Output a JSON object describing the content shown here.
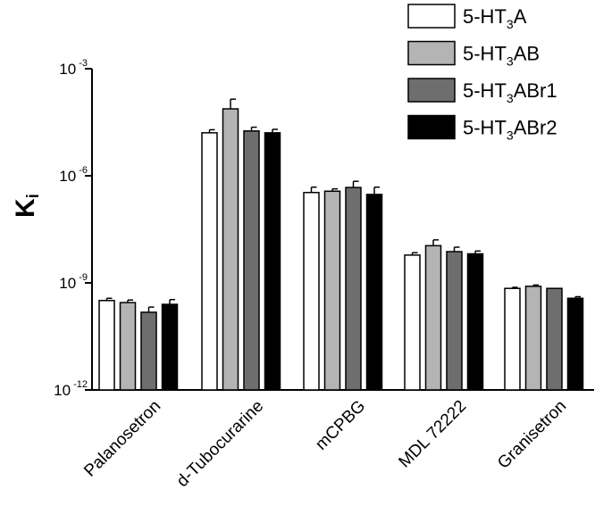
{
  "chart_data": {
    "type": "bar",
    "ylabel": "K",
    "ylabel_subscript": "i",
    "yscale": "log",
    "ylim": [
      1e-12,
      0.001
    ],
    "yticks": [
      {
        "base": "10",
        "exp": "-3"
      },
      {
        "base": "10",
        "exp": "-6"
      },
      {
        "base": "10",
        "exp": "-9"
      },
      {
        "base": "10",
        "exp": "-12"
      }
    ],
    "categories": [
      "Palanosetron",
      "d-Tubocurarine",
      "mCPBG",
      "MDL 72222",
      "Granisetron"
    ],
    "series": [
      {
        "name": "5-HT3A",
        "name_main": "5-HT",
        "name_sub": "3",
        "name_tail": "A",
        "color": "#ffffff",
        "values": [
          3.2e-10,
          1.6e-05,
          3.4e-07,
          6e-09,
          7e-10
        ],
        "errors": [
          5e-11,
          3.5e-06,
          1.4e-07,
          1e-09,
          5e-11
        ]
      },
      {
        "name": "5-HT3AB",
        "name_main": "5-HT",
        "name_sub": "3",
        "name_tail": "AB",
        "color": "#b4b4b4",
        "values": [
          2.8e-10,
          7.5e-05,
          3.7e-07,
          1.1e-08,
          8e-10
        ],
        "errors": [
          5e-11,
          6.5e-05,
          6e-08,
          5e-09,
          7e-11
        ]
      },
      {
        "name": "5-HT3ABr1",
        "name_main": "5-HT",
        "name_sub": "3",
        "name_tail": "ABr1",
        "color": "#6e6e6e",
        "values": [
          1.5e-10,
          1.8e-05,
          4.7e-07,
          7.5e-09,
          7e-10
        ],
        "errors": [
          6e-11,
          5e-06,
          2.3e-07,
          2.5e-09,
          0
        ]
      },
      {
        "name": "5-HT3ABr2",
        "name_main": "5-HT",
        "name_sub": "3",
        "name_tail": "ABr2",
        "color": "#000000",
        "values": [
          2.5e-10,
          1.6e-05,
          3e-07,
          6.5e-09,
          3.7e-10
        ],
        "errors": [
          9e-11,
          4e-06,
          1.8e-07,
          1.3e-09,
          4e-11
        ]
      }
    ]
  }
}
